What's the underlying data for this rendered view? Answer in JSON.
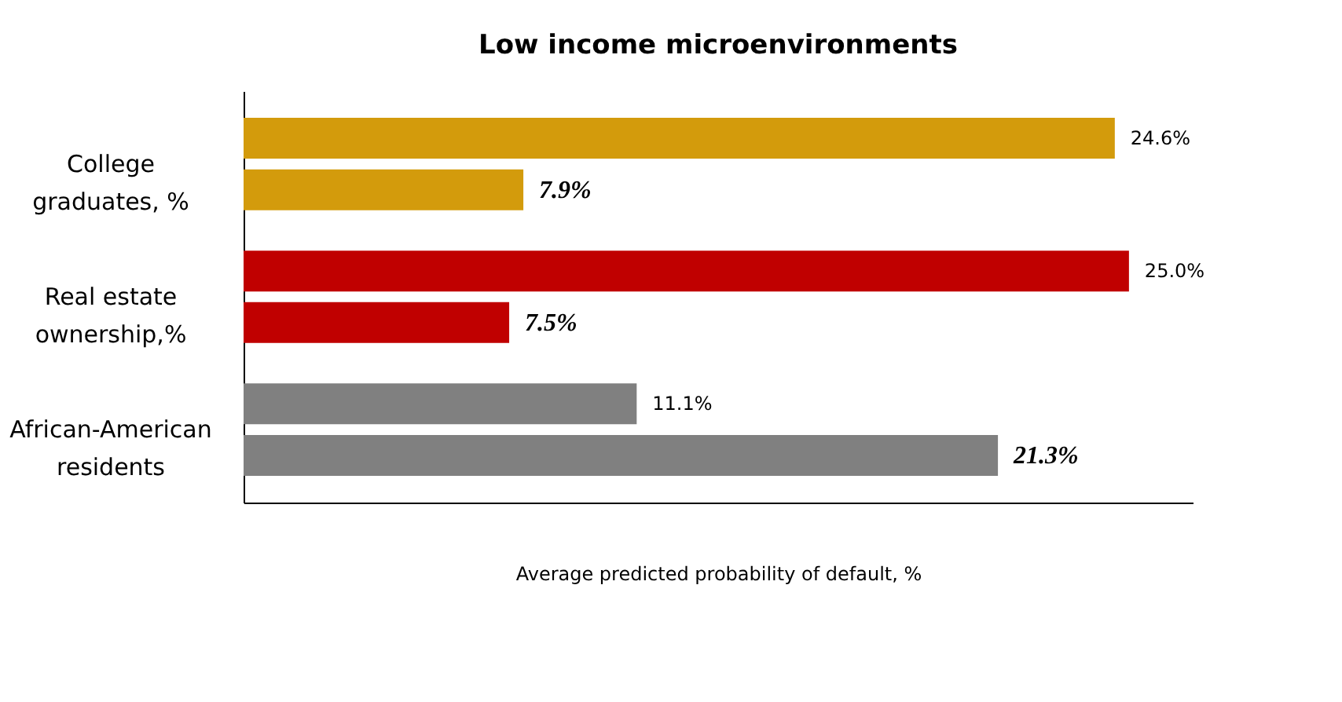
{
  "chart_data": {
    "type": "bar",
    "orientation": "horizontal",
    "title": "Low income microenvironments",
    "xlabel": "Average predicted probability of default, %",
    "categories": [
      "College graduates, %",
      "Real estate ownership,%",
      "African-American residents"
    ],
    "xlim": [
      0,
      26.8
    ],
    "tick_labels": "y",
    "series": [
      {
        "colors": [
          "#d39b0c",
          "#c00000",
          "#808080"
        ],
        "values": [
          24.6,
          25.0,
          11.1
        ],
        "value_labels": [
          "24.6%",
          "25.0%",
          "11.1%"
        ]
      },
      {
        "colors": [
          "#d39b0c",
          "#c00000",
          "#808080"
        ],
        "values": [
          7.9,
          7.5,
          21.3
        ],
        "value_labels": [
          "7.9%",
          "7.5%",
          "21.3%"
        ]
      }
    ]
  }
}
